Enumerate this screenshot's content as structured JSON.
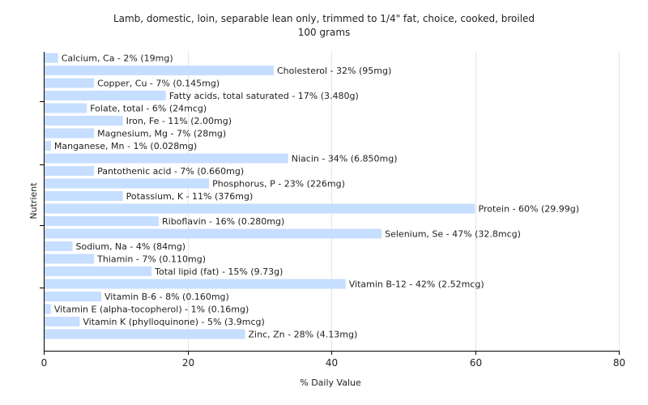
{
  "chart_data": {
    "type": "bar",
    "orientation": "horizontal",
    "title": "Lamb, domestic, loin, separable lean only, trimmed to 1/4\" fat, choice, cooked, broiled",
    "subtitle": "100 grams",
    "xlabel": "% Daily Value",
    "ylabel": "Nutrient",
    "xlim": [
      0,
      80
    ],
    "xticks": [
      0,
      20,
      40,
      60,
      80
    ],
    "grid": true,
    "bar_color": "#c6deff",
    "categories": [
      "Calcium, Ca",
      "Cholesterol",
      "Copper, Cu",
      "Fatty acids, total saturated",
      "Folate, total",
      "Iron, Fe",
      "Magnesium, Mg",
      "Manganese, Mn",
      "Niacin",
      "Pantothenic acid",
      "Phosphorus, P",
      "Potassium, K",
      "Protein",
      "Riboflavin",
      "Selenium, Se",
      "Sodium, Na",
      "Thiamin",
      "Total lipid (fat)",
      "Vitamin B-12",
      "Vitamin B-6",
      "Vitamin E (alpha-tocopherol)",
      "Vitamin K (phylloquinone)",
      "Zinc, Zn"
    ],
    "values": [
      2,
      32,
      7,
      17,
      6,
      11,
      7,
      1,
      34,
      7,
      23,
      11,
      60,
      16,
      47,
      4,
      7,
      15,
      42,
      8,
      1,
      5,
      28
    ],
    "labels": [
      "Calcium, Ca - 2% (19mg)",
      "Cholesterol - 32% (95mg)",
      "Copper, Cu - 7% (0.145mg)",
      "Fatty acids, total saturated - 17% (3.480g)",
      "Folate, total - 6% (24mcg)",
      "Iron, Fe - 11% (2.00mg)",
      "Magnesium, Mg - 7% (28mg)",
      "Manganese, Mn - 1% (0.028mg)",
      "Niacin - 34% (6.850mg)",
      "Pantothenic acid - 7% (0.660mg)",
      "Phosphorus, P - 23% (226mg)",
      "Potassium, K - 11% (376mg)",
      "Protein - 60% (29.99g)",
      "Riboflavin - 16% (0.280mg)",
      "Selenium, Se - 47% (32.8mcg)",
      "Sodium, Na - 4% (84mg)",
      "Thiamin - 7% (0.110mg)",
      "Total lipid (fat) - 15% (9.73g)",
      "Vitamin B-12 - 42% (2.52mcg)",
      "Vitamin B-6 - 8% (0.160mg)",
      "Vitamin E (alpha-tocopherol) - 1% (0.16mg)",
      "Vitamin K (phylloquinone) - 5% (3.9mcg)",
      "Zinc, Zn - 28% (4.13mg)"
    ]
  }
}
